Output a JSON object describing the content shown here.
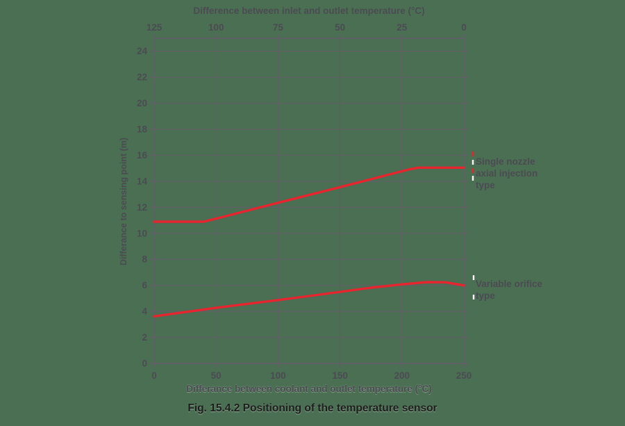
{
  "figure": {
    "caption": "Fig. 15.4.2 Positioning of the temperature sensor"
  },
  "colors": {
    "background": "#4a6f52",
    "grid": "#5f6065",
    "axis": "#5f6065",
    "text": "#4c4b53",
    "curve_red": "#e8242f",
    "leader_white": "#ffffff",
    "caption_text": "#1d1d1d"
  },
  "chart_data": {
    "type": "line",
    "grid": true,
    "top_axis": {
      "title": "Difference between inlet and outlet temperature (°C)",
      "ticks": [
        125,
        100,
        75,
        50,
        25,
        0
      ],
      "range": [
        125,
        0
      ]
    },
    "bottom_axis": {
      "title": "Differance between coolant and outlet temperature (°C)",
      "ticks": [
        0,
        50,
        100,
        150,
        200,
        250
      ],
      "range": [
        0,
        250
      ]
    },
    "left_axis": {
      "title": "Differance to sensing point (m)",
      "ticks": [
        24,
        22,
        20,
        18,
        16,
        14,
        12,
        10,
        8,
        6,
        4,
        2,
        0
      ],
      "range": [
        0,
        25
      ],
      "grid_step": 2
    },
    "series": [
      {
        "name": "Single nozzle axial injection type",
        "label_lines": [
          "Single nozzle",
          "axial injection",
          "type"
        ],
        "points": [
          [
            0,
            10.9
          ],
          [
            40,
            10.9
          ],
          [
            55,
            11.25
          ],
          [
            100,
            12.35
          ],
          [
            150,
            13.55
          ],
          [
            205,
            14.9
          ],
          [
            213,
            15.05
          ],
          [
            250,
            15.05
          ]
        ]
      },
      {
        "name": "Variable orifice type",
        "label_lines": [
          "Variable orifice",
          "type"
        ],
        "points": [
          [
            0,
            3.62
          ],
          [
            25,
            3.95
          ],
          [
            50,
            4.28
          ],
          [
            75,
            4.58
          ],
          [
            100,
            4.87
          ],
          [
            125,
            5.18
          ],
          [
            150,
            5.5
          ],
          [
            175,
            5.82
          ],
          [
            200,
            6.08
          ],
          [
            220,
            6.25
          ],
          [
            235,
            6.24
          ],
          [
            250,
            6.0
          ]
        ]
      }
    ]
  }
}
